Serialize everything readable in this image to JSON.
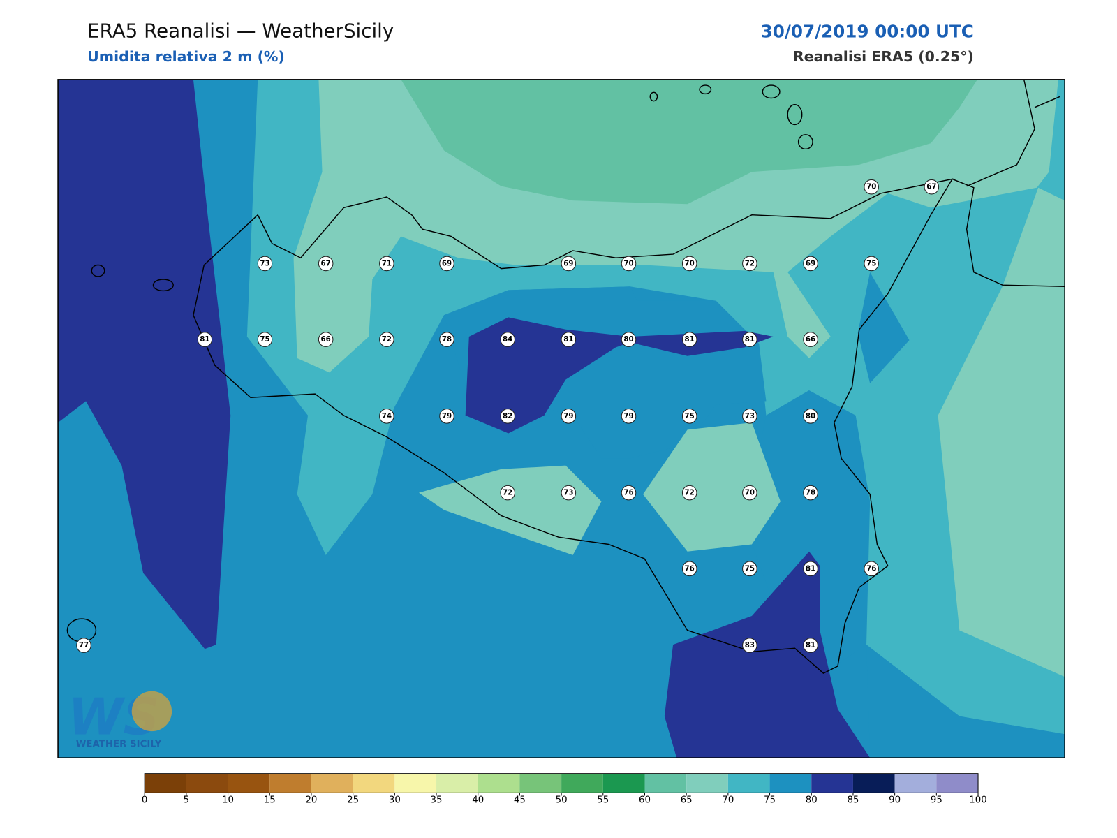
{
  "header": {
    "title": "ERA5 Reanalisi — WeatherSicily",
    "subtitle": "Umidita relativa 2 m (%)",
    "datetime": "30/07/2019 00:00 UTC",
    "source": "Reanalisi ERA5 (0.25°)"
  },
  "stations": [
    70,
    67,
    73,
    67,
    71,
    69,
    69,
    70,
    70,
    72,
    69,
    75,
    81,
    75,
    66,
    72,
    78,
    84,
    81,
    80,
    81,
    81,
    66,
    74,
    79,
    82,
    79,
    79,
    75,
    73,
    80,
    72,
    73,
    76,
    72,
    70,
    78,
    76,
    75,
    81,
    76,
    77,
    83,
    81
  ],
  "colorbar": {
    "ticks": [
      0,
      5,
      10,
      15,
      20,
      25,
      30,
      35,
      40,
      45,
      50,
      55,
      60,
      65,
      70,
      75,
      80,
      85,
      90,
      95,
      100
    ],
    "colors": [
      "#7b4008",
      "#8b4a0e",
      "#985410",
      "#bf7d2e",
      "#e0b05c",
      "#f2d77e",
      "#f7f6aa",
      "#d9eea8",
      "#addf8e",
      "#77c479",
      "#40a95b",
      "#1b9850",
      "#62c1a3",
      "#80cebc",
      "#41b6c4",
      "#1d91c0",
      "#253494",
      "#081d58",
      "#a3aedc",
      "#8f8cc9"
    ]
  },
  "logo": {
    "mark": "WS",
    "name": "WEATHER SICILY"
  }
}
